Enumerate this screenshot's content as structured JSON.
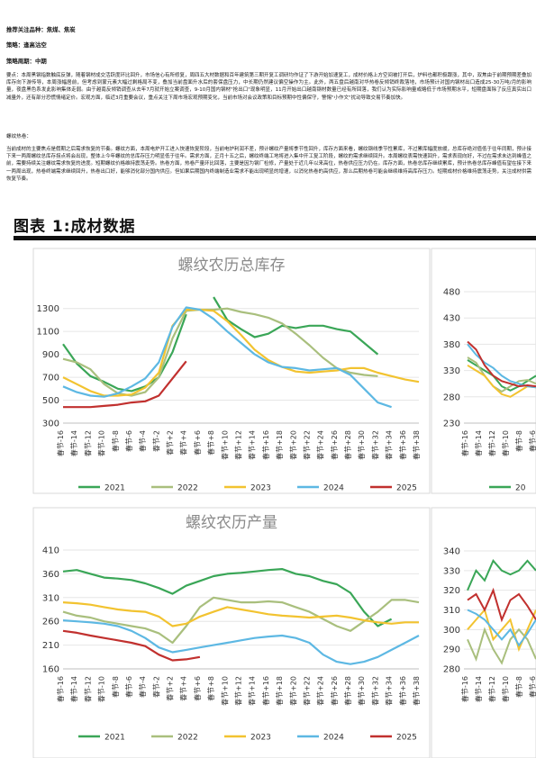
{
  "header": {
    "variety_label": "推荐关注品种：",
    "variety_value": "焦煤、焦炭",
    "strategy_label": "策略：",
    "strategy_value": "逢高沽空",
    "period_label": "策略周期：",
    "period_value": "中期"
  },
  "summary": "要点：本周黑钢指数触底反弹，随着钢材成交活跃度环比回升，市场信心有所修复，周四五大材数据和百年建筑第三期开复工调研均作证了下游开始加速复工，成材价格上方空间被打开后，炉料也都积极跟涨，其中，双焦由于前期预期差叠加库存向下游传导，本周涨幅居前，但考虑到蒙元素大幅过剩格局不变，叠加当前盘面升水后的套保盘压力，中长期仍然建议偏空操作为主。此外，两五盘后越南对华热卷反倾销终裁落地，市场预计对国内钢材出口造成25-30万吨/月的影响量，夜盘黑色系发此影响集体走弱。由于越南反倾销调查从去年7月就开始立案调查，9-10月国内钢材\"抢出口\"现象明显，11月开始出口越南钢材数量已经有所回落，我们认为实际影响量或略低于市场预期水平，短期盘面除了反应真实出口减量外，还有部分恐慌情绪定价。宏观方面，临近3月重要会议，重点关注下周市场宏观预期变化，当前市场对会议政策和目标预期中性偏保守，警惕\"小作文\"扰动导致交易节奏加快。",
  "rebar_label": "螺纹热卷：",
  "rebar_text": "当前成材的主要焦点是假期之后需求恢复的节奏。螺纹方面，本周电炉开工进入快速恢复阶段，当前电炉利润不差，预计螺纹产量将季节性回升，库存方面来看，螺纹钢线季节性累库，不过累库幅度放缓，总库存绝对值低于往年同期，预计接下来一两周螺纹总库存拐点将会出现，整体上今年螺纹的总库存压力明显低于往年。需求方面，正月十五之后，螺纹终端工地将进入集中开工复工阶段，螺纹的需求继续回升。本周螺纹表需快速回升，需求表现向好，不过在需求未达到峰值之前，需要持续关注螺纹需求恢复的进度。短期螺纹价格维持震荡走势。热卷方面，热卷产量环比回落，主要是因为钢厂检修，产量处于近几年以来高位，热卷供应压力仍在。库存方面，热卷总库存继续累库，预计热卷总库存峰值有望在接下来一两周出现，热卷终端需求继续回升，热卷出口好，能够消化部分国内供应。但如果后期国内终端制造业需求不能出现明显的增速，以消化热卷的高供应，那么后期热卷可能会继续维持高库存压力。短期成材价格维持震荡走势，关注成材供需恢复节奏。",
  "figure_title": "图表 1:成材数据",
  "colors": {
    "y2021": "#3aa657",
    "y2022": "#a9bf7d",
    "y2023": "#f2c330",
    "y2024": "#5db8e3",
    "y2025": "#c1302e"
  },
  "x_ticks": [
    "春节-16",
    "春节-14",
    "春节-12",
    "春节-10",
    "春节-8",
    "春节-6",
    "春节-4",
    "春节-2",
    "春节+2",
    "春节+4",
    "春节+6",
    "春节+8",
    "春节+10",
    "春节+12",
    "春节+14",
    "春节+16",
    "春节+18",
    "春节+20",
    "春节+22",
    "春节+24",
    "春节+26",
    "春节+28",
    "春节+30",
    "春节+32",
    "春节+34",
    "春节+36",
    "春节+38"
  ],
  "chart_data": [
    {
      "type": "line",
      "title": "螺纹农历总库存",
      "ylim": [
        300,
        1400
      ],
      "yticks": [
        300,
        500,
        700,
        900,
        1100,
        1300
      ],
      "x": [
        -16,
        -14,
        -12,
        -10,
        -8,
        -6,
        -4,
        -2,
        2,
        4,
        6,
        8,
        10,
        12,
        14,
        16,
        18,
        20,
        22,
        24,
        26,
        28,
        30,
        32,
        34,
        36,
        38
      ],
      "legend_position": "bottom",
      "series": [
        {
          "name": "2021",
          "color_key": "y2021",
          "values": [
            990,
            820,
            710,
            660,
            600,
            580,
            620,
            700,
            920,
            1250,
            null,
            1400,
            1200,
            1120,
            1050,
            1080,
            1150,
            1130,
            1150,
            1150,
            1120,
            1100,
            1000,
            900,
            null,
            null,
            null
          ]
        },
        {
          "name": "2022",
          "color_key": "y2022",
          "values": [
            860,
            830,
            770,
            640,
            560,
            540,
            570,
            700,
            1040,
            1280,
            1290,
            1290,
            1300,
            1270,
            1250,
            1220,
            1170,
            1080,
            980,
            870,
            780,
            740,
            720,
            710,
            null,
            null,
            null
          ]
        },
        {
          "name": "2023",
          "color_key": "y2023",
          "values": [
            700,
            640,
            580,
            540,
            540,
            550,
            610,
            740,
            1150,
            1290,
            1290,
            1280,
            1190,
            1070,
            940,
            850,
            790,
            750,
            740,
            750,
            760,
            780,
            780,
            740,
            710,
            680,
            660
          ]
        },
        {
          "name": "2024",
          "color_key": "y2024",
          "values": [
            620,
            570,
            540,
            530,
            560,
            620,
            690,
            830,
            1140,
            1310,
            1290,
            1210,
            1100,
            1000,
            900,
            830,
            790,
            780,
            760,
            770,
            780,
            720,
            600,
            480,
            440,
            null,
            null
          ]
        },
        {
          "name": "2025",
          "color_key": "y2025",
          "values": [
            440,
            440,
            440,
            450,
            460,
            480,
            490,
            540,
            690,
            840,
            null,
            null,
            null,
            null,
            null,
            null,
            null,
            null,
            null,
            null,
            null,
            null,
            null,
            null,
            null,
            null,
            null
          ]
        }
      ],
      "side_panel": {
        "yticks": [
          230,
          280,
          330,
          380,
          430,
          480
        ]
      }
    },
    {
      "type": "line",
      "title": "螺纹农历产量",
      "ylim": [
        160,
        410
      ],
      "yticks": [
        160,
        210,
        260,
        310,
        360,
        410
      ],
      "x": [
        -16,
        -14,
        -12,
        -10,
        -8,
        -6,
        -4,
        -2,
        2,
        4,
        6,
        8,
        10,
        12,
        14,
        16,
        18,
        20,
        22,
        24,
        26,
        28,
        30,
        32,
        34,
        36,
        38
      ],
      "legend_position": "bottom",
      "series": [
        {
          "name": "2021",
          "color_key": "y2021",
          "values": [
            365,
            368,
            360,
            352,
            350,
            347,
            340,
            330,
            318,
            335,
            345,
            355,
            360,
            362,
            365,
            368,
            370,
            360,
            355,
            345,
            338,
            320,
            280,
            250,
            265,
            null,
            null
          ]
        },
        {
          "name": "2022",
          "color_key": "y2022",
          "values": [
            280,
            272,
            268,
            260,
            255,
            250,
            245,
            235,
            215,
            250,
            290,
            310,
            305,
            300,
            300,
            302,
            300,
            290,
            280,
            265,
            250,
            240,
            260,
            280,
            305,
            305,
            300
          ]
        },
        {
          "name": "2023",
          "color_key": "y2023",
          "values": [
            300,
            298,
            295,
            290,
            285,
            282,
            280,
            270,
            250,
            255,
            270,
            280,
            290,
            285,
            280,
            275,
            272,
            270,
            268,
            270,
            272,
            268,
            262,
            258,
            255,
            258,
            258
          ]
        },
        {
          "name": "2024",
          "color_key": "y2024",
          "values": [
            262,
            260,
            258,
            255,
            250,
            240,
            225,
            205,
            195,
            200,
            205,
            210,
            215,
            220,
            225,
            228,
            230,
            225,
            215,
            190,
            175,
            170,
            175,
            185,
            200,
            215,
            230
          ]
        },
        {
          "name": "2025",
          "color_key": "y2025",
          "values": [
            240,
            236,
            230,
            225,
            220,
            215,
            208,
            190,
            178,
            180,
            185,
            null,
            null,
            null,
            null,
            null,
            null,
            null,
            null,
            null,
            null,
            null,
            null,
            null,
            null,
            null,
            null
          ]
        }
      ],
      "side_panel": {
        "yticks": [
          280,
          290,
          300,
          310,
          320,
          330,
          340
        ]
      }
    }
  ],
  "side_charts": [
    {
      "partial_legend": "20",
      "series": [
        {
          "color_key": "y2021",
          "values": [
            350,
            340,
            330,
            320,
            300,
            292,
            300,
            310,
            320
          ]
        },
        {
          "color_key": "y2022",
          "values": [
            355,
            345,
            320,
            300,
            290,
            300,
            310,
            312,
            305
          ]
        },
        {
          "color_key": "y2023",
          "values": [
            340,
            330,
            320,
            300,
            285,
            280,
            290,
            300,
            298
          ]
        },
        {
          "color_key": "y2024",
          "values": [
            380,
            360,
            345,
            335,
            320,
            310,
            305,
            300,
            298
          ]
        },
        {
          "color_key": "y2025",
          "values": [
            385,
            370,
            340,
            320,
            310,
            305,
            300,
            302,
            300
          ]
        }
      ]
    },
    {
      "series": [
        {
          "color_key": "y2021",
          "values": [
            320,
            330,
            325,
            335,
            330,
            328,
            330,
            335,
            330
          ]
        },
        {
          "color_key": "y2022",
          "values": [
            295,
            285,
            300,
            290,
            283,
            295,
            300,
            295,
            285
          ]
        },
        {
          "color_key": "y2023",
          "values": [
            300,
            305,
            310,
            295,
            300,
            305,
            290,
            300,
            310
          ]
        },
        {
          "color_key": "y2024",
          "values": [
            310,
            308,
            305,
            300,
            295,
            300,
            292,
            298,
            305
          ]
        },
        {
          "color_key": "y2025",
          "values": [
            315,
            318,
            310,
            320,
            305,
            315,
            318,
            312,
            305
          ]
        }
      ]
    }
  ]
}
